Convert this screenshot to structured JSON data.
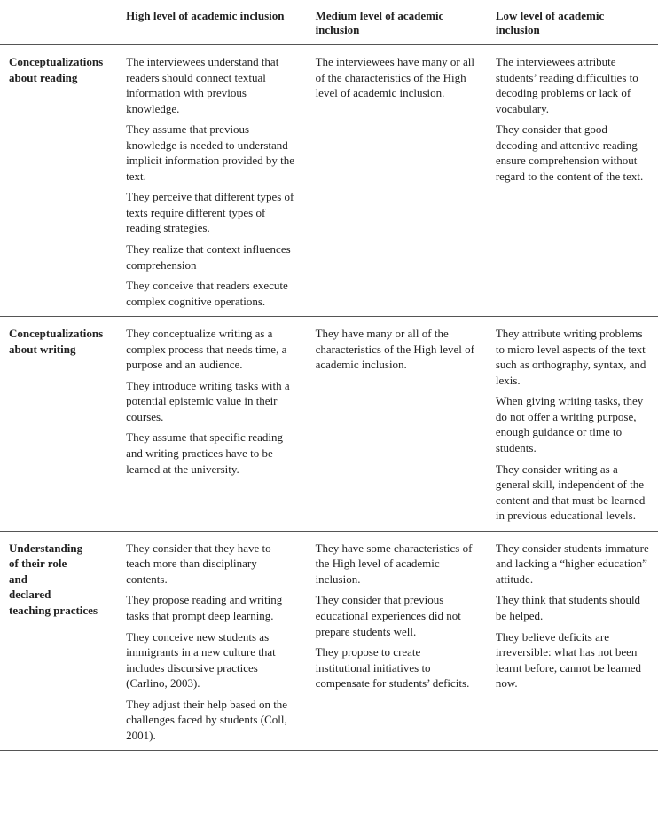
{
  "table": {
    "headers": {
      "col0": "",
      "col1": "High level of academic inclusion",
      "col2": "Medium level of academic inclusion",
      "col3": "Low level of academic inclusion"
    },
    "rows": [
      {
        "label_lines": [
          "Conceptualizations",
          "about reading"
        ],
        "high": [
          "The interviewees understand that readers should connect textual information with previous knowledge.",
          "They assume that previous knowledge is needed to understand implicit information provided by the text.",
          "They perceive that different types of texts require different types of reading strategies.",
          "They realize that context influences comprehension",
          "They conceive that readers execute complex cognitive operations."
        ],
        "medium": [
          "The interviewees have many or all of the characteristics of the High level of academic inclusion."
        ],
        "low": [
          "The interviewees attribute students’ reading difficulties to decoding problems or lack of vocabulary.",
          "They consider that good decoding and attentive reading ensure comprehension without regard to the content of the text."
        ]
      },
      {
        "label_lines": [
          "Conceptualizations",
          "about writing"
        ],
        "high": [
          "They conceptualize writing as a complex process that needs time, a purpose and an audience.",
          "They introduce writing tasks with a potential epistemic value in their courses.",
          "They assume that specific reading and writing practices have to be learned at the university."
        ],
        "medium": [
          "They have many or all of the characteristics of the High level of academic inclusion."
        ],
        "low": [
          "They attribute writing problems to micro level aspects of the text such as orthography, syntax, and lexis.",
          "When giving writing tasks, they do not offer a writing purpose, enough guidance or time to students.",
          "They consider writing as a general skill, independent of the content and that must be learned in previous educational levels."
        ]
      },
      {
        "label_lines": [
          "Understanding",
          "of their role",
          "and",
          "declared",
          "teaching practices"
        ],
        "high": [
          "They consider that they have to teach more than disciplinary contents.",
          "They propose reading and writing tasks that prompt deep learning.",
          "They conceive new students as immigrants in a new culture that includes discursive practices (Carlino, 2003).",
          "They adjust their help based on the challenges faced by students (Coll, 2001)."
        ],
        "medium": [
          "They have some characteristics of the High level of academic inclusion.",
          "They consider that previous educational experiences did not prepare students well.",
          "They propose to create institutional initiatives to compensate for students’ deficits."
        ],
        "low": [
          "They consider students immature and lacking a “higher education” attitude.",
          "They think that students should be helped.",
          "They believe deficits are irreversible: what has not been learnt before, cannot be learned now."
        ]
      }
    ]
  }
}
